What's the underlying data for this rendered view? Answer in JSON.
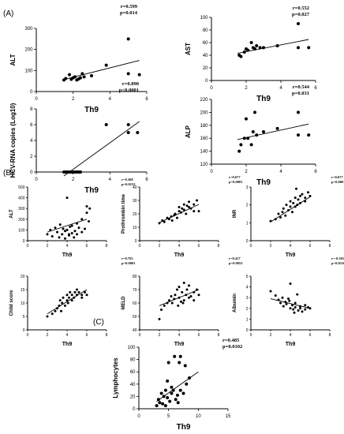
{
  "panels": [
    {
      "label": "(A)"
    },
    {
      "label": "(B)"
    },
    {
      "label": "(C)"
    }
  ],
  "chart_data": [
    {
      "type": "scatter",
      "panel": "A",
      "xlabel": "Th9",
      "ylabel": "ALT",
      "xlim": [
        0,
        6
      ],
      "ylim": [
        0,
        300
      ],
      "xticks": [
        "0",
        "2",
        "4",
        "6"
      ],
      "yticks": [
        "0",
        "100",
        "200",
        "300"
      ],
      "stats": [
        "r=0.599",
        "p=0.014"
      ],
      "x": [
        1.5,
        1.6,
        1.8,
        1.9,
        2.0,
        2.1,
        2.2,
        2.3,
        2.4,
        2.5,
        2.6,
        3.0,
        3.8,
        5.0,
        5.0,
        5.6
      ],
      "y": [
        55,
        62,
        80,
        58,
        65,
        70,
        55,
        60,
        65,
        85,
        70,
        75,
        125,
        250,
        85,
        80
      ],
      "fit": [
        [
          1.5,
          57
        ],
        [
          5.6,
          148
        ]
      ]
    },
    {
      "type": "scatter",
      "panel": "A",
      "xlabel": "Th9",
      "ylabel": "AST",
      "xlim": [
        0,
        6
      ],
      "ylim": [
        0,
        100
      ],
      "xticks": [
        "0",
        "2",
        "4",
        "6"
      ],
      "yticks": [
        "0",
        "20",
        "40",
        "60",
        "80",
        "100"
      ],
      "stats": [
        "r=0.552",
        "p=0.027"
      ],
      "x": [
        1.6,
        1.7,
        1.9,
        2.0,
        2.1,
        2.3,
        2.4,
        2.5,
        2.6,
        2.8,
        3.0,
        3.8,
        5.0,
        5.0,
        5.6
      ],
      "y": [
        40,
        38,
        45,
        50,
        48,
        60,
        52,
        50,
        55,
        52,
        52,
        55,
        90,
        52,
        52
      ],
      "fit": [
        [
          1.5,
          43
        ],
        [
          5.6,
          65
        ]
      ]
    },
    {
      "type": "scatter",
      "panel": "A",
      "xlabel": "Th9",
      "ylabel": "HCV-RNA copies (Log10)",
      "xlim": [
        0,
        6
      ],
      "ylim": [
        0,
        8
      ],
      "xticks": [
        "0",
        "2",
        "4",
        "6"
      ],
      "yticks": [
        "0",
        "2",
        "4",
        "6",
        "8"
      ],
      "stats": [
        "r=0.890",
        "p<0.0001"
      ],
      "x": [
        1.5,
        1.6,
        1.7,
        1.8,
        1.9,
        2.0,
        2.1,
        2.2,
        2.3,
        2.4,
        3.8,
        5.0,
        5.0,
        5.5
      ],
      "y": [
        0,
        0,
        0,
        0,
        0,
        0,
        0,
        0,
        0,
        0,
        6,
        6,
        5,
        5
      ],
      "fit": [
        [
          1.5,
          -0.5
        ],
        [
          5.6,
          6.4
        ]
      ]
    },
    {
      "type": "scatter",
      "panel": "A",
      "xlabel": "Th9",
      "ylabel": "ALP",
      "xlim": [
        0,
        6
      ],
      "ylim": [
        120,
        220
      ],
      "xticks": [
        "0",
        "2",
        "4",
        "6"
      ],
      "yticks": [
        "120",
        "140",
        "160",
        "180",
        "200",
        "220"
      ],
      "stats": [
        "r=0.544",
        "p=0.031"
      ],
      "x": [
        1.6,
        1.7,
        1.9,
        2.0,
        2.1,
        2.3,
        2.4,
        2.5,
        2.6,
        3.0,
        3.8,
        5.0,
        5.0,
        5.6
      ],
      "y": [
        140,
        150,
        160,
        190,
        160,
        150,
        170,
        200,
        165,
        170,
        175,
        200,
        165,
        165
      ],
      "fit": [
        [
          1.5,
          158
        ],
        [
          5.6,
          182
        ]
      ]
    },
    {
      "type": "scatter",
      "panel": "B",
      "xlabel": "Th9",
      "ylabel": "ALT",
      "xlim": [
        0,
        8
      ],
      "ylim": [
        0,
        500
      ],
      "xticks": [
        "0",
        "2",
        "4",
        "6",
        "8"
      ],
      "yticks": [
        "0",
        "100",
        "200",
        "300",
        "400",
        "500"
      ],
      "stats": [
        "r=0.368",
        "p=0.0152"
      ],
      "x": [
        2.0,
        2.3,
        2.5,
        2.8,
        3.0,
        3.2,
        3.3,
        3.5,
        3.6,
        3.8,
        4.0,
        4.0,
        4.2,
        4.3,
        4.5,
        4.5,
        4.7,
        4.8,
        5.0,
        5.0,
        5.2,
        5.5,
        5.5,
        5.8,
        6.0,
        6.0,
        6.2,
        6.3,
        3.8,
        4.2
      ],
      "y": [
        60,
        100,
        40,
        120,
        80,
        30,
        150,
        60,
        110,
        90,
        400,
        100,
        50,
        130,
        70,
        140,
        30,
        90,
        60,
        160,
        120,
        80,
        200,
        110,
        320,
        260,
        180,
        300,
        20,
        60
      ],
      "fit": [
        [
          2,
          80
        ],
        [
          6,
          200
        ]
      ]
    },
    {
      "type": "scatter",
      "panel": "B",
      "xlabel": "Th9",
      "ylabel": "Prothrombin time",
      "xlim": [
        0,
        8
      ],
      "ylim": [
        0,
        40
      ],
      "xticks": [
        "0",
        "2",
        "4",
        "6",
        "8"
      ],
      "yticks": [
        "0",
        "10",
        "20",
        "30",
        "40"
      ],
      "stats": [
        "r=0.677",
        "p=0.0001"
      ],
      "x": [
        2.0,
        2.3,
        2.5,
        2.8,
        3.0,
        3.2,
        3.3,
        3.5,
        3.6,
        3.8,
        4.0,
        4.0,
        4.2,
        4.3,
        4.5,
        4.5,
        4.7,
        4.8,
        5.0,
        5.0,
        5.2,
        5.5,
        5.5,
        5.8,
        6.0
      ],
      "y": [
        13,
        15,
        14,
        17,
        16,
        18,
        15,
        19,
        20,
        17,
        22,
        25,
        21,
        24,
        23,
        27,
        20,
        26,
        25,
        29,
        24,
        22,
        27,
        30,
        22
      ],
      "fit": [
        [
          2,
          13.5
        ],
        [
          6,
          27
        ]
      ]
    },
    {
      "type": "scatter",
      "panel": "B",
      "xlabel": "Th9",
      "ylabel": "INR",
      "xlim": [
        0,
        8
      ],
      "ylim": [
        0,
        3
      ],
      "xticks": [
        "0",
        "2",
        "4",
        "6",
        "8"
      ],
      "yticks": [
        "0",
        "1",
        "2",
        "3"
      ],
      "stats": [
        "r=0.677",
        "p=0.0001"
      ],
      "x": [
        2.0,
        2.5,
        2.8,
        3.0,
        3.2,
        3.3,
        3.5,
        3.6,
        3.8,
        4.0,
        4.0,
        4.2,
        4.3,
        4.5,
        4.5,
        4.7,
        4.8,
        5.0,
        5.0,
        5.2,
        5.5,
        5.5,
        5.8,
        6.0,
        4.6
      ],
      "y": [
        1.1,
        1.2,
        1.5,
        1.3,
        1.6,
        1.8,
        1.4,
        2.0,
        1.7,
        1.9,
        2.2,
        1.6,
        2.1,
        1.9,
        2.4,
        2.0,
        2.3,
        2.5,
        2.1,
        2.6,
        2.4,
        2.2,
        2.7,
        2.5,
        2.9
      ],
      "fit": [
        [
          2,
          1.05
        ],
        [
          6,
          2.45
        ]
      ]
    },
    {
      "type": "scatter",
      "panel": "B",
      "xlabel": "Th9",
      "ylabel": "Child score",
      "xlim": [
        0,
        8
      ],
      "ylim": [
        0,
        20
      ],
      "xticks": [
        "0",
        "2",
        "4",
        "6",
        "8"
      ],
      "yticks": [
        "0",
        "5",
        "10",
        "15",
        "20"
      ],
      "stats": [
        "r=0.763",
        "p=0.0001"
      ],
      "x": [
        2.0,
        2.5,
        2.8,
        3.0,
        3.2,
        3.3,
        3.5,
        3.6,
        3.8,
        4.0,
        4.0,
        4.2,
        4.3,
        4.5,
        4.5,
        4.7,
        4.8,
        5.0,
        5.0,
        5.2,
        5.5,
        5.5,
        5.8,
        6.0,
        3.4,
        4.1
      ],
      "y": [
        5,
        6,
        7,
        8,
        9,
        11,
        10,
        12,
        9,
        11,
        13,
        12,
        14,
        11,
        13,
        12,
        14,
        13,
        15,
        14,
        12,
        13,
        14,
        13,
        7,
        10
      ],
      "fit": [
        [
          2,
          6
        ],
        [
          6,
          15
        ]
      ]
    },
    {
      "type": "scatter",
      "panel": "B",
      "xlabel": "Th9",
      "ylabel": "MELD",
      "xlim": [
        0,
        8
      ],
      "ylim": [
        40,
        80
      ],
      "xticks": [
        "0",
        "2",
        "4",
        "6",
        "8"
      ],
      "yticks": [
        "40",
        "50",
        "60",
        "70",
        "80"
      ],
      "stats": [
        "r=0.417",
        "p=0.0053"
      ],
      "x": [
        2.0,
        2.5,
        2.8,
        3.0,
        3.2,
        3.3,
        3.5,
        3.6,
        3.8,
        4.0,
        4.0,
        4.2,
        4.3,
        4.5,
        4.5,
        4.7,
        4.8,
        5.0,
        5.0,
        5.2,
        5.5,
        5.5,
        5.8,
        6.0,
        3.9,
        4.4,
        2.2
      ],
      "y": [
        48,
        58,
        60,
        62,
        65,
        60,
        63,
        66,
        70,
        64,
        72,
        61,
        68,
        75,
        62,
        66,
        70,
        64,
        73,
        65,
        68,
        62,
        70,
        66,
        58,
        60,
        55
      ],
      "fit": [
        [
          2,
          58
        ],
        [
          6,
          70
        ]
      ]
    },
    {
      "type": "scatter",
      "panel": "B",
      "xlabel": "Th9",
      "ylabel": "Albumin",
      "xlim": [
        0,
        8
      ],
      "ylim": [
        0,
        5
      ],
      "xticks": [
        "0",
        "2",
        "4",
        "6",
        "8"
      ],
      "yticks": [
        "0",
        "1",
        "2",
        "3",
        "4",
        "5"
      ],
      "stats": [
        "r=-0.301",
        "p=0.0116"
      ],
      "x": [
        2.0,
        2.5,
        2.8,
        3.0,
        3.2,
        3.3,
        3.5,
        3.6,
        3.8,
        4.0,
        4.0,
        4.2,
        4.3,
        4.5,
        4.5,
        4.7,
        4.8,
        5.0,
        5.0,
        5.2,
        5.5,
        5.5,
        5.8,
        6.0,
        3.9,
        4.4
      ],
      "y": [
        3.6,
        3.2,
        2.8,
        2.5,
        3.0,
        2.2,
        2.6,
        2.4,
        2.9,
        2.0,
        4.3,
        2.3,
        1.9,
        2.5,
        2.1,
        3.3,
        1.8,
        2.2,
        2.0,
        1.7,
        2.3,
        1.9,
        2.1,
        2.0,
        2.7,
        1.6
      ],
      "fit": [
        [
          2,
          2.9
        ],
        [
          6,
          2.0
        ]
      ]
    },
    {
      "type": "scatter",
      "panel": "C",
      "xlabel": "Th9",
      "ylabel": "Lymphocytes",
      "xlim": [
        0,
        15
      ],
      "ylim": [
        0,
        100
      ],
      "xticks": [
        "0",
        "5",
        "10",
        "15"
      ],
      "yticks": [
        "0",
        "20",
        "40",
        "60",
        "80",
        "100"
      ],
      "stats": [
        "r=0.485",
        "p=0.0102"
      ],
      "x": [
        3.0,
        3.3,
        3.5,
        3.8,
        4.0,
        4.2,
        4.5,
        4.5,
        4.8,
        5.0,
        5.2,
        5.5,
        5.5,
        5.8,
        6.0,
        6.2,
        6.5,
        6.8,
        7.0,
        7.0,
        7.5,
        7.8,
        8.0,
        8.5,
        4.8,
        6.6
      ],
      "y": [
        5,
        15,
        10,
        25,
        8,
        20,
        5,
        30,
        18,
        75,
        12,
        35,
        25,
        30,
        85,
        15,
        22,
        75,
        30,
        85,
        25,
        70,
        40,
        50,
        45,
        10
      ],
      "fit": [
        [
          3,
          12
        ],
        [
          10,
          60
        ]
      ]
    }
  ]
}
